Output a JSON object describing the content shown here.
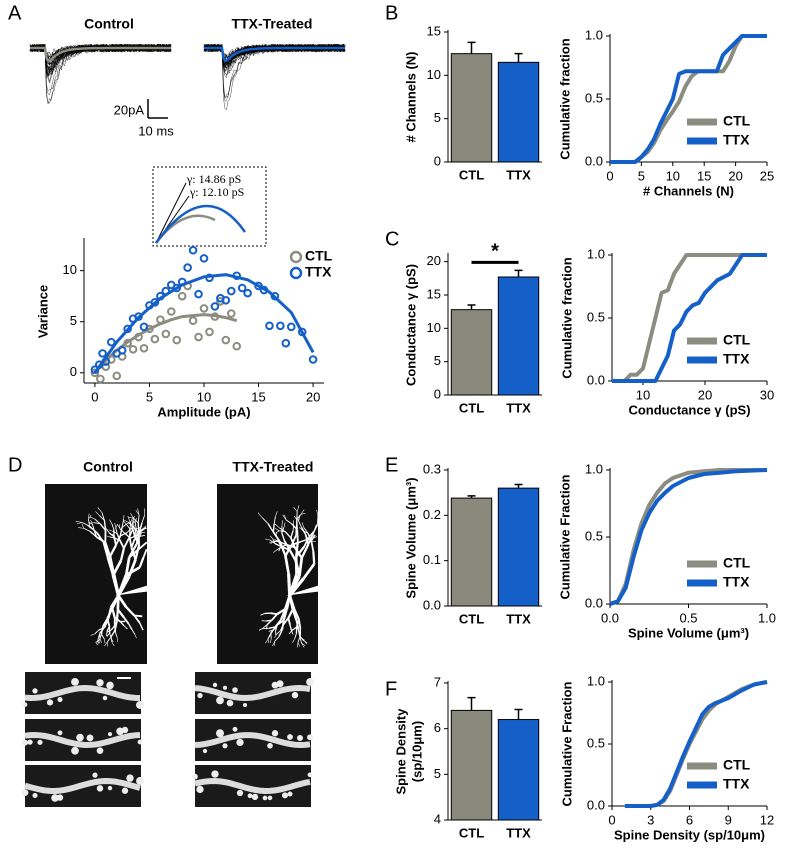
{
  "panel_A": {
    "letter": "A",
    "titles": [
      "Control",
      "TTX-Treated"
    ],
    "scale_y": "20pA",
    "scale_x": "10 ms",
    "inset": [
      "γ: 14.86 pS",
      "γ: 12.10 pS"
    ]
  },
  "panel_D": {
    "letter": "D",
    "titles": [
      "Control",
      "TTX-Treated"
    ]
  },
  "chart_data": [
    {
      "type": "scatter",
      "xlabel": "Amplitude (pA)",
      "ylabel": "Variance",
      "xlim": [
        -1,
        21
      ],
      "xticks": [
        0,
        5,
        10,
        15,
        20
      ],
      "ylim": [
        -1,
        13
      ],
      "yticks": [
        0,
        5,
        10
      ],
      "legend": "upper right",
      "series": [
        {
          "name": "CTL",
          "color": "#8c8c80",
          "x": [
            0,
            0.5,
            1,
            1.5,
            2,
            2.5,
            3,
            3.5,
            4,
            4.5,
            5,
            5.5,
            6,
            6.5,
            7,
            7.5,
            8,
            8.5,
            9,
            9.5,
            10,
            10.5,
            11,
            11.5,
            12,
            12.5,
            13
          ],
          "values": [
            0,
            -0.6,
            0.6,
            1.3,
            -0.3,
            1.6,
            2.9,
            2.3,
            3.5,
            2.4,
            4.3,
            3.3,
            5.2,
            3.8,
            6.0,
            3.2,
            7.5,
            8.5,
            5.1,
            3.5,
            6.3,
            4.0,
            5.5,
            7.0,
            3.2,
            5.8,
            2.6
          ],
          "fit": {
            "x": [
              0,
              1,
              2,
              3,
              4,
              5,
              6,
              7,
              8,
              9,
              10,
              11,
              12,
              13
            ],
            "values": [
              0,
              1.2,
              2.2,
              3.0,
              3.7,
              4.3,
              4.8,
              5.2,
              5.5,
              5.6,
              5.7,
              5.6,
              5.4,
              5.1
            ]
          }
        },
        {
          "name": "TTX",
          "color": "#1560c8",
          "x": [
            0,
            0.4,
            0.7,
            1,
            1.5,
            2,
            2.5,
            3,
            3.5,
            4,
            4.5,
            5,
            5.5,
            6,
            6.5,
            7,
            7.5,
            8,
            8.5,
            9,
            9.5,
            10,
            10.5,
            11,
            11.5,
            12,
            12.5,
            13,
            13.5,
            14,
            15,
            15.5,
            16,
            16.5,
            17,
            17.5,
            18,
            19,
            20
          ],
          "values": [
            0.3,
            0.8,
            1.9,
            1.1,
            3.0,
            1.9,
            2.2,
            4.3,
            5.3,
            5.5,
            4.5,
            6.6,
            6.9,
            7.5,
            8.0,
            8.6,
            8.3,
            8.9,
            10.3,
            12.0,
            7.7,
            11.2,
            9.3,
            6.5,
            7.3,
            7.1,
            8.0,
            9.5,
            8.3,
            7.8,
            8.5,
            8.1,
            4.6,
            7.5,
            4.6,
            2.9,
            4.5,
            4.0,
            1.3
          ],
          "fit": {
            "x": [
              0,
              2,
              4,
              6,
              8,
              10,
              12,
              14,
              16,
              18,
              20
            ],
            "values": [
              0,
              3.0,
              5.4,
              7.3,
              8.6,
              9.4,
              9.6,
              9.1,
              7.9,
              5.9,
              2.0
            ]
          }
        }
      ]
    },
    {
      "type": "bar",
      "panel": "B",
      "ylabel": "# Channels (N)",
      "categories": [
        "CTL",
        "TTX"
      ],
      "values": [
        12.5,
        11.5
      ],
      "errors": [
        1.3,
        1.0
      ],
      "colors": [
        "#8a8a7c",
        "#1560c8"
      ],
      "ylim": [
        0,
        15
      ],
      "yticks": [
        0,
        5,
        10,
        15
      ]
    },
    {
      "type": "line",
      "xlabel": "# Channels (N)",
      "ylabel": "Cumulative fraction",
      "xlim": [
        0,
        25
      ],
      "xticks": [
        0,
        5,
        10,
        15,
        20,
        25
      ],
      "ylim": [
        0,
        1
      ],
      "yticks": [
        {
          "value": 0,
          "label": "0.0"
        },
        0.5,
        {
          "value": 1,
          "label": "1.0"
        }
      ],
      "legend": "lower right",
      "series": [
        {
          "name": "CTL",
          "color": "#8c8c80",
          "x": [
            0,
            4,
            5,
            6,
            7,
            8,
            9,
            10,
            11,
            12,
            13,
            14,
            17,
            18,
            19,
            20,
            21,
            22,
            25
          ],
          "values": [
            0,
            0,
            0.04,
            0.08,
            0.15,
            0.25,
            0.33,
            0.4,
            0.48,
            0.6,
            0.68,
            0.72,
            0.72,
            0.72,
            0.8,
            0.92,
            1,
            1,
            1
          ]
        },
        {
          "name": "TTX",
          "color": "#1560c8",
          "x": [
            0,
            4,
            5,
            6,
            7,
            8,
            9,
            10,
            11,
            12,
            13,
            14,
            17,
            18,
            19,
            20,
            21,
            22,
            25
          ],
          "values": [
            0,
            0,
            0.04,
            0.1,
            0.18,
            0.3,
            0.4,
            0.5,
            0.7,
            0.72,
            0.72,
            0.72,
            0.72,
            0.85,
            0.9,
            0.95,
            1,
            1,
            1
          ]
        }
      ]
    },
    {
      "type": "bar",
      "panel": "C",
      "ylabel": "Conductance γ (pS)",
      "categories": [
        "CTL",
        "TTX"
      ],
      "values": [
        12.8,
        17.7
      ],
      "errors": [
        0.7,
        1.0
      ],
      "colors": [
        "#8a8a7c",
        "#1560c8"
      ],
      "ylim": [
        0,
        21
      ],
      "yticks": [
        0,
        5,
        10,
        15,
        20
      ],
      "annotation": "*"
    },
    {
      "type": "line",
      "xlabel": "Conductance γ (pS)",
      "ylabel": "Cumulative fraction",
      "xlim": [
        5,
        30
      ],
      "xticks": [
        10,
        20,
        30
      ],
      "ylim": [
        0,
        1
      ],
      "yticks": [
        {
          "value": 0,
          "label": "0.0"
        },
        0.5,
        {
          "value": 1,
          "label": "1.0"
        }
      ],
      "legend": "lower right",
      "series": [
        {
          "name": "CTL",
          "color": "#8c8c80",
          "x": [
            5,
            7,
            8,
            9,
            10,
            11,
            12,
            13,
            14,
            15,
            17,
            19,
            21,
            30
          ],
          "values": [
            0,
            0,
            0.05,
            0.05,
            0.1,
            0.3,
            0.5,
            0.7,
            0.72,
            0.85,
            1,
            1,
            1,
            1
          ]
        },
        {
          "name": "TTX",
          "color": "#1560c8",
          "x": [
            5,
            10,
            12,
            13,
            14,
            15,
            16,
            17,
            18,
            19,
            20,
            21,
            22,
            24,
            26,
            27,
            30
          ],
          "values": [
            0,
            0,
            0,
            0.1,
            0.2,
            0.4,
            0.45,
            0.55,
            0.6,
            0.62,
            0.7,
            0.75,
            0.8,
            0.85,
            1,
            1,
            1
          ]
        }
      ]
    },
    {
      "type": "bar",
      "panel": "E",
      "ylabel": "Spine Volume (μm³)",
      "categories": [
        "CTL",
        "TTX"
      ],
      "values": [
        0.238,
        0.26
      ],
      "errors": [
        0.005,
        0.008
      ],
      "colors": [
        "#8a8a7c",
        "#1560c8"
      ],
      "ylim": [
        0,
        0.3
      ],
      "yticks": [
        {
          "value": 0,
          "label": "0.0"
        },
        0.1,
        0.2,
        0.3
      ]
    },
    {
      "type": "line",
      "xlabel": "Spine Volume (μm³)",
      "ylabel": "Cumulative Fraction",
      "xlim": [
        0,
        1
      ],
      "xticks": [
        {
          "value": 0,
          "label": "0.0"
        },
        0.5,
        {
          "value": 1,
          "label": "1.0"
        }
      ],
      "ylim": [
        0,
        1
      ],
      "yticks": [
        {
          "value": 0,
          "label": "0.0"
        },
        0.5,
        {
          "value": 1,
          "label": "1.0"
        }
      ],
      "legend": "lower right",
      "series": [
        {
          "name": "CTL",
          "color": "#8c8c80",
          "x": [
            0,
            0.05,
            0.1,
            0.15,
            0.2,
            0.25,
            0.3,
            0.35,
            0.4,
            0.5,
            0.6,
            0.7,
            0.8,
            1
          ],
          "values": [
            0,
            0.02,
            0.15,
            0.4,
            0.6,
            0.74,
            0.83,
            0.9,
            0.94,
            0.98,
            0.99,
            1,
            1,
            1
          ]
        },
        {
          "name": "TTX",
          "color": "#1560c8",
          "x": [
            0,
            0.05,
            0.1,
            0.15,
            0.2,
            0.25,
            0.3,
            0.35,
            0.4,
            0.5,
            0.6,
            0.7,
            0.8,
            1
          ],
          "values": [
            0,
            0.02,
            0.12,
            0.35,
            0.55,
            0.68,
            0.77,
            0.83,
            0.88,
            0.94,
            0.97,
            0.98,
            0.99,
            1
          ]
        }
      ]
    },
    {
      "type": "bar",
      "panel": "F",
      "ylabel": [
        "Spine Density",
        "(sp/10μm)"
      ],
      "categories": [
        "CTL",
        "TTX"
      ],
      "values": [
        6.4,
        6.2
      ],
      "errors": [
        0.28,
        0.22
      ],
      "colors": [
        "#8a8a7c",
        "#1560c8"
      ],
      "ylim": [
        4,
        7
      ],
      "yticks": [
        4,
        5,
        6,
        7
      ]
    },
    {
      "type": "line",
      "xlabel": "Spine Density (sp/10μm)",
      "ylabel": "Cumulative Fraction",
      "xlim": [
        0,
        12
      ],
      "xticks": [
        0,
        3,
        6,
        9,
        12
      ],
      "ylim": [
        0,
        1
      ],
      "yticks": [
        {
          "value": 0,
          "label": "0.0"
        },
        0.5,
        {
          "value": 1,
          "label": "1.0"
        }
      ],
      "legend": "lower right",
      "series": [
        {
          "name": "CTL",
          "color": "#8c8c80",
          "x": [
            1,
            3,
            3.5,
            4,
            4.5,
            5,
            5.5,
            6,
            6.5,
            7,
            7.5,
            8,
            9,
            10,
            11,
            12
          ],
          "values": [
            0,
            0,
            0.01,
            0.04,
            0.12,
            0.25,
            0.38,
            0.5,
            0.6,
            0.7,
            0.77,
            0.82,
            0.88,
            0.94,
            0.98,
            1
          ]
        },
        {
          "name": "TTX",
          "color": "#1560c8",
          "x": [
            1,
            3,
            3.5,
            4,
            4.5,
            5,
            5.5,
            6,
            6.5,
            7,
            7.5,
            8,
            9,
            10,
            11,
            12
          ],
          "values": [
            0,
            0,
            0.01,
            0.05,
            0.14,
            0.27,
            0.4,
            0.52,
            0.63,
            0.74,
            0.8,
            0.83,
            0.87,
            0.93,
            0.98,
            1
          ]
        }
      ]
    }
  ]
}
